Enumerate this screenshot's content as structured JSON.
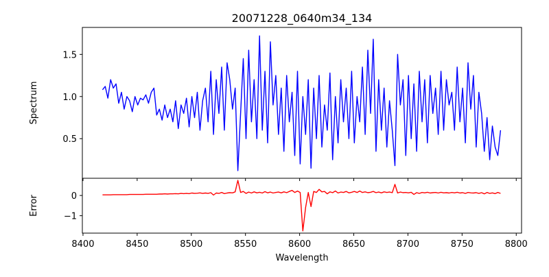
{
  "chart_data": [
    {
      "type": "line",
      "title": "20071228_0640m34_134",
      "xlabel": "",
      "ylabel": "Spectrum",
      "xlim": [
        8399.4,
        8804.9
      ],
      "ylim": [
        0.03,
        1.82
      ],
      "xticks": [
        8400,
        8450,
        8500,
        8550,
        8600,
        8650,
        8700,
        8750,
        8800
      ],
      "yticks": [
        0.5,
        1.0,
        1.5
      ],
      "ytick_labels": [
        "0.5",
        "1.0",
        "1.5"
      ],
      "grid": false,
      "color": "#0000ff",
      "x_start": 8418,
      "x_step": 2.5,
      "values": [
        1.08,
        1.12,
        0.98,
        1.2,
        1.1,
        1.15,
        0.92,
        1.05,
        0.85,
        1.0,
        0.95,
        0.82,
        1.0,
        0.9,
        0.98,
        0.96,
        1.02,
        0.92,
        1.05,
        1.1,
        0.78,
        0.85,
        0.72,
        0.9,
        0.75,
        0.85,
        0.7,
        0.95,
        0.62,
        0.9,
        0.8,
        0.98,
        0.64,
        1.0,
        0.75,
        1.05,
        0.6,
        0.95,
        1.1,
        0.7,
        1.3,
        0.55,
        1.2,
        0.8,
        1.35,
        0.6,
        1.4,
        1.2,
        0.85,
        1.1,
        0.12,
        0.8,
        1.45,
        0.5,
        1.55,
        0.7,
        1.2,
        0.5,
        1.72,
        0.6,
        1.3,
        0.45,
        1.65,
        0.9,
        1.25,
        0.55,
        1.1,
        0.35,
        1.25,
        0.7,
        1.05,
        0.3,
        1.3,
        0.2,
        1.0,
        0.55,
        1.2,
        0.15,
        1.1,
        0.5,
        1.25,
        0.4,
        0.9,
        0.6,
        1.28,
        0.25,
        1.0,
        0.45,
        1.2,
        0.7,
        1.1,
        0.5,
        1.3,
        0.45,
        1.0,
        0.7,
        1.35,
        0.55,
        1.55,
        0.8,
        1.68,
        0.35,
        1.2,
        0.6,
        1.1,
        0.4,
        0.95,
        0.6,
        0.18,
        1.5,
        0.9,
        1.2,
        0.3,
        1.25,
        0.5,
        1.15,
        0.35,
        1.3,
        0.7,
        1.2,
        0.45,
        1.25,
        0.8,
        1.1,
        0.55,
        1.3,
        0.6,
        1.2,
        0.9,
        1.05,
        0.6,
        1.35,
        0.7,
        1.1,
        0.45,
        1.4,
        0.85,
        1.25,
        0.4,
        1.05,
        0.8,
        0.35,
        0.75,
        0.25,
        0.65,
        0.4,
        0.3,
        0.6
      ]
    },
    {
      "type": "line",
      "title": "",
      "xlabel": "Wavelength",
      "ylabel": "Error",
      "xlim": [
        8399.4,
        8804.9
      ],
      "ylim": [
        -1.86,
        0.85
      ],
      "xticks": [
        8400,
        8450,
        8500,
        8550,
        8600,
        8650,
        8700,
        8750,
        8800
      ],
      "xtick_labels": [
        "8400",
        "8450",
        "8500",
        "8550",
        "8600",
        "8650",
        "8700",
        "8750",
        "8800"
      ],
      "yticks": [
        0,
        -1
      ],
      "ytick_labels": [
        "0",
        "−1"
      ],
      "grid": false,
      "color": "#ff0000",
      "x_start": 8418,
      "x_step": 2.5,
      "values": [
        0.03,
        0.03,
        0.03,
        0.03,
        0.04,
        0.04,
        0.04,
        0.04,
        0.04,
        0.04,
        0.05,
        0.05,
        0.05,
        0.05,
        0.05,
        0.05,
        0.06,
        0.06,
        0.06,
        0.06,
        0.06,
        0.07,
        0.07,
        0.08,
        0.07,
        0.08,
        0.08,
        0.09,
        0.08,
        0.1,
        0.09,
        0.1,
        0.09,
        0.12,
        0.1,
        0.11,
        0.13,
        0.1,
        0.12,
        0.1,
        0.14,
        0.02,
        0.12,
        0.1,
        0.15,
        0.09,
        0.12,
        0.14,
        0.13,
        0.18,
        0.75,
        0.15,
        0.2,
        0.1,
        0.17,
        0.12,
        0.18,
        0.13,
        0.16,
        0.12,
        0.19,
        0.13,
        0.17,
        0.12,
        0.15,
        0.17,
        0.13,
        0.18,
        0.14,
        0.2,
        0.25,
        0.15,
        0.22,
        0.15,
        -1.75,
        -0.6,
        0.15,
        -0.55,
        0.2,
        0.15,
        0.3,
        0.18,
        0.2,
        0.08,
        0.18,
        0.14,
        0.22,
        0.12,
        0.17,
        0.15,
        0.2,
        0.13,
        0.16,
        0.2,
        0.15,
        0.22,
        0.15,
        0.18,
        0.14,
        0.16,
        0.2,
        0.14,
        0.17,
        0.13,
        0.18,
        0.15,
        0.17,
        0.14,
        0.55,
        0.12,
        0.17,
        0.14,
        0.15,
        0.13,
        0.16,
        0.05,
        0.14,
        0.1,
        0.15,
        0.13,
        0.16,
        0.12,
        0.14,
        0.15,
        0.12,
        0.16,
        0.13,
        0.14,
        0.12,
        0.15,
        0.13,
        0.16,
        0.12,
        0.14,
        0.1,
        0.15,
        0.13,
        0.12,
        0.14,
        0.1,
        0.14,
        0.08,
        0.15,
        0.1,
        0.13,
        0.09,
        0.15,
        0.1
      ]
    }
  ]
}
